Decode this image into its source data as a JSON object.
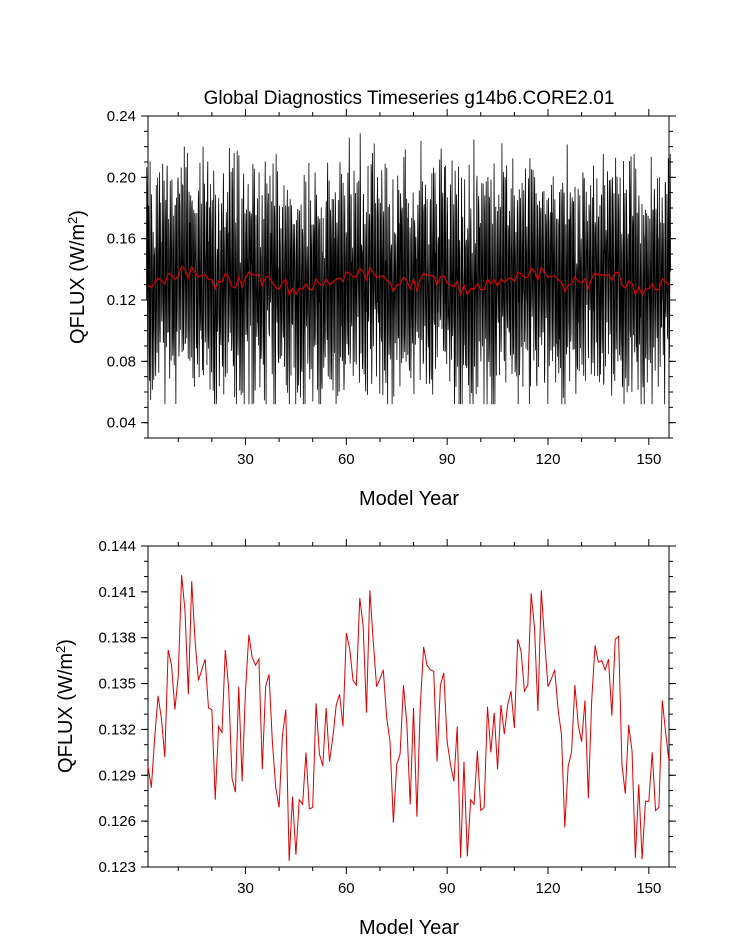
{
  "chart_data": [
    {
      "type": "line",
      "title": "Global Diagnostics Timeseries g14b6.CORE2.01",
      "xlabel": "Model Year",
      "ylabel": "QFLUX (W/m",
      "ylabel_sup": "2",
      "ylabel_close": ")",
      "xlim": [
        1,
        156
      ],
      "ylim": [
        0.03,
        0.24
      ],
      "xticks": [
        30,
        60,
        90,
        120,
        150
      ],
      "xtick_labels": [
        "30",
        "60",
        "90",
        "120",
        "150"
      ],
      "yticks": [
        0.04,
        0.08,
        0.12,
        0.16,
        0.2,
        0.24
      ],
      "ytick_labels": [
        "0.04",
        "0.08",
        "0.12",
        "0.16",
        "0.20",
        "0.24"
      ],
      "grid": false,
      "series_colors": [
        "#000000",
        "#dd0000"
      ],
      "series_description": "Monthly values oscillate roughly between 0.05 and 0.23; red line shows the annual mean (second panel values)."
    },
    {
      "type": "line",
      "xlabel": "Model Year",
      "ylabel": "QFLUX (W/m",
      "ylabel_sup": "2",
      "ylabel_close": ")",
      "xlim": [
        1,
        156
      ],
      "ylim": [
        0.123,
        0.144
      ],
      "xticks": [
        30,
        60,
        90,
        120,
        150
      ],
      "xtick_labels": [
        "30",
        "60",
        "90",
        "120",
        "150"
      ],
      "yticks": [
        0.123,
        0.126,
        0.129,
        0.132,
        0.135,
        0.138,
        0.141,
        0.144
      ],
      "ytick_labels": [
        "0.123",
        "0.126",
        "0.129",
        "0.132",
        "0.135",
        "0.138",
        "0.141",
        "0.144"
      ],
      "grid": false,
      "color": "#dd0000",
      "x": [
        1,
        2,
        3,
        4,
        5,
        6,
        7,
        8,
        9,
        10,
        11,
        12,
        13,
        14,
        15,
        16,
        17,
        18,
        19,
        20,
        21,
        22,
        23,
        24,
        25,
        26,
        27,
        28,
        29,
        30,
        31,
        32,
        33,
        34,
        35,
        36,
        37,
        38,
        39,
        40,
        41,
        42,
        43,
        44,
        45,
        46,
        47,
        48,
        49,
        50,
        51,
        52,
        53,
        54,
        55,
        56,
        57,
        58,
        59,
        60,
        61,
        62,
        63,
        64,
        65,
        66,
        67,
        68,
        69,
        70,
        71,
        72,
        73,
        74,
        75,
        76,
        77,
        78,
        79,
        80,
        81,
        82,
        83,
        84,
        85,
        86,
        87,
        88,
        89,
        90,
        91,
        92,
        93,
        94,
        95,
        96,
        97,
        98,
        99,
        100,
        101,
        102,
        103,
        104,
        105,
        106,
        107,
        108,
        109,
        110,
        111,
        112,
        113,
        114,
        115,
        116,
        117,
        118,
        119,
        120,
        121,
        122,
        123,
        124,
        125,
        126,
        127,
        128,
        129,
        130,
        131,
        132,
        133,
        134,
        135,
        136,
        137,
        138,
        139,
        140,
        141,
        142,
        143,
        144,
        145,
        146,
        147,
        148,
        149,
        150,
        151,
        152,
        153,
        154,
        155,
        156
      ],
      "values": [
        0.1296,
        0.1282,
        0.1315,
        0.1342,
        0.1327,
        0.1302,
        0.1372,
        0.1362,
        0.1333,
        0.1355,
        0.1421,
        0.1398,
        0.1343,
        0.1417,
        0.1378,
        0.1352,
        0.1359,
        0.1366,
        0.1334,
        0.1333,
        0.1274,
        0.1322,
        0.1318,
        0.1372,
        0.1347,
        0.1288,
        0.1279,
        0.1348,
        0.1286,
        0.1345,
        0.1382,
        0.1367,
        0.1362,
        0.1366,
        0.1294,
        0.1348,
        0.1356,
        0.1312,
        0.1282,
        0.1269,
        0.1316,
        0.1333,
        0.1234,
        0.1276,
        0.1238,
        0.1274,
        0.1271,
        0.1305,
        0.1268,
        0.1269,
        0.1337,
        0.1304,
        0.1296,
        0.1334,
        0.1299,
        0.1315,
        0.1336,
        0.1343,
        0.1322,
        0.1383,
        0.1373,
        0.1352,
        0.1349,
        0.1406,
        0.1388,
        0.1331,
        0.1411,
        0.1378,
        0.1348,
        0.1353,
        0.1359,
        0.1328,
        0.1312,
        0.1259,
        0.1297,
        0.1304,
        0.1349,
        0.1324,
        0.1271,
        0.1334,
        0.1263,
        0.1335,
        0.1374,
        0.1362,
        0.1359,
        0.1358,
        0.1299,
        0.1349,
        0.1357,
        0.1312,
        0.1297,
        0.1286,
        0.1322,
        0.1236,
        0.1299,
        0.1237,
        0.1274,
        0.1271,
        0.1306,
        0.1267,
        0.1269,
        0.1335,
        0.1305,
        0.1331,
        0.1294,
        0.1336,
        0.1317,
        0.1336,
        0.1345,
        0.1321,
        0.1379,
        0.1371,
        0.1345,
        0.1349,
        0.1409,
        0.1386,
        0.1332,
        0.1411,
        0.1378,
        0.1348,
        0.1353,
        0.1359,
        0.1333,
        0.1317,
        0.1256,
        0.1296,
        0.1305,
        0.1349,
        0.1323,
        0.1312,
        0.1339,
        0.1275,
        0.1339,
        0.1375,
        0.1364,
        0.1365,
        0.1359,
        0.1366,
        0.1329,
        0.1379,
        0.1381,
        0.1297,
        0.1278,
        0.1323,
        0.1306,
        0.1236,
        0.1284,
        0.1235,
        0.1273,
        0.1273,
        0.1305,
        0.1267,
        0.1269,
        0.1339,
        0.1318,
        0.1299
      ]
    }
  ]
}
